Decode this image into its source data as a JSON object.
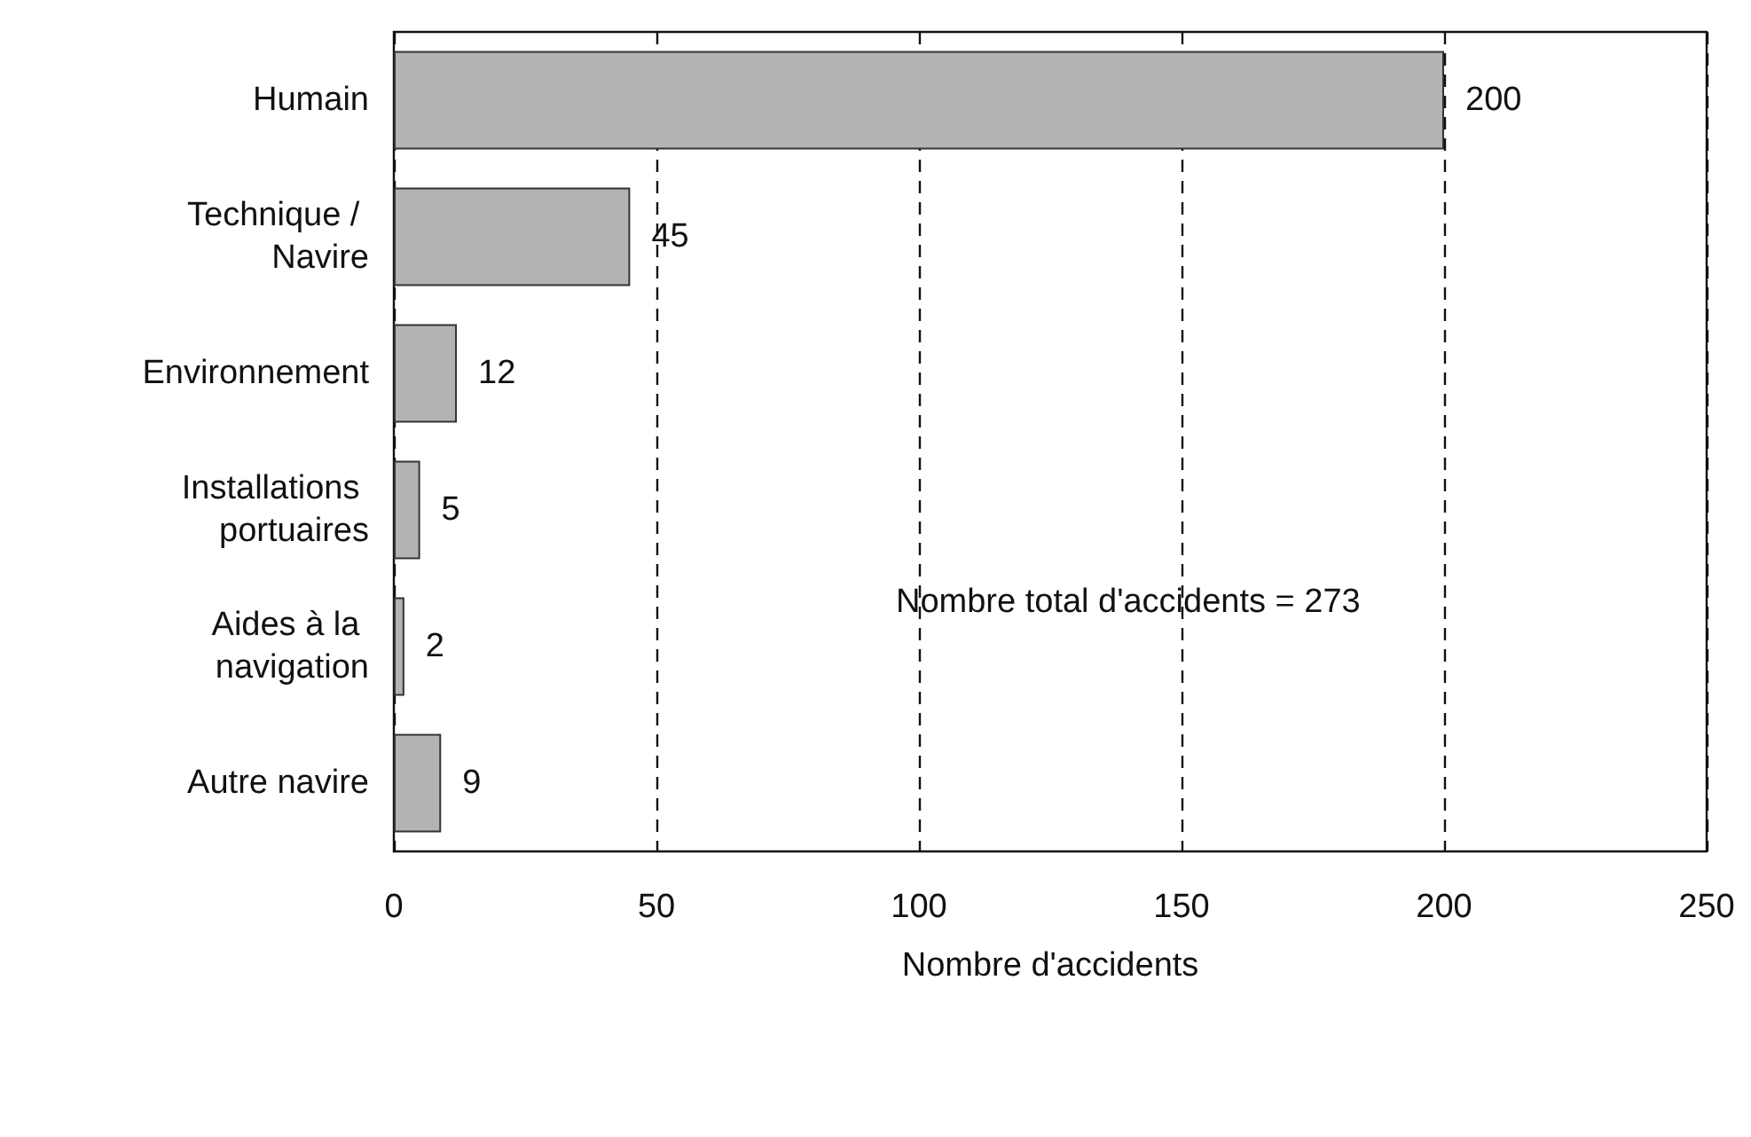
{
  "chart_data": {
    "type": "bar",
    "orientation": "horizontal",
    "xlabel": "Nombre d'accidents",
    "categories": [
      "Humain",
      "Technique / Navire",
      "Environnement",
      "Installations portuaires",
      "Aides à la navigation",
      "Autre navire"
    ],
    "values": [
      200,
      45,
      12,
      5,
      2,
      9
    ],
    "color": "#b3b3b3",
    "xlim": [
      0,
      250
    ],
    "xticks": [
      0,
      50,
      100,
      150,
      200,
      250
    ],
    "grid": "x",
    "data_labels": true,
    "annotations": [
      "Nombre total d'accidents = 273"
    ]
  }
}
